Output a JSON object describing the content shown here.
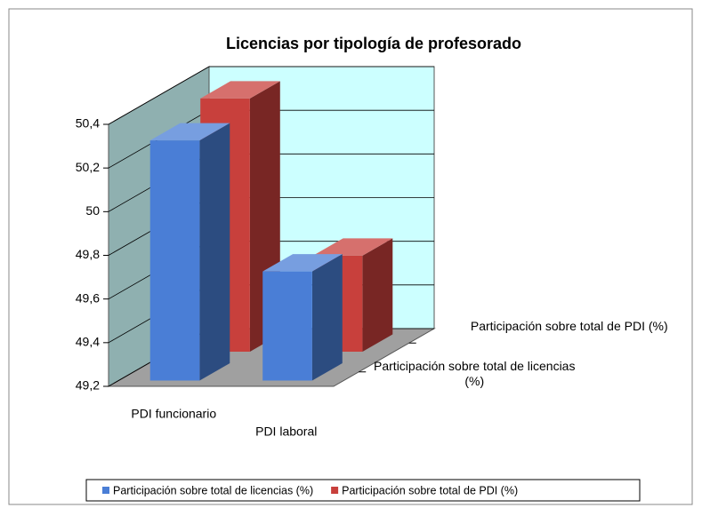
{
  "chart_data": {
    "type": "bar3d",
    "title": "Licencias por tipología de profesorado",
    "categories": [
      "PDI funcionario",
      "PDI laboral"
    ],
    "series": [
      {
        "name": "Participación sobre total de licencias (%)",
        "color": "#4a7ed6",
        "values": [
          50.3,
          49.7
        ]
      },
      {
        "name": "Participación sobre total de PDI (%)",
        "color": "#c8403c",
        "values": [
          50.36,
          49.64
        ]
      }
    ],
    "ylim": [
      49.2,
      50.4
    ],
    "yticks": [
      {
        "value": 49.2,
        "label": "49,2"
      },
      {
        "value": 49.4,
        "label": "49,4"
      },
      {
        "value": 49.6,
        "label": "49,6"
      },
      {
        "value": 49.8,
        "label": "49,8"
      },
      50,
      {
        "value": 50.2,
        "label": "50,2"
      },
      {
        "value": 50.4,
        "label": "50,4"
      }
    ],
    "grid": true,
    "legend": "bottom"
  }
}
